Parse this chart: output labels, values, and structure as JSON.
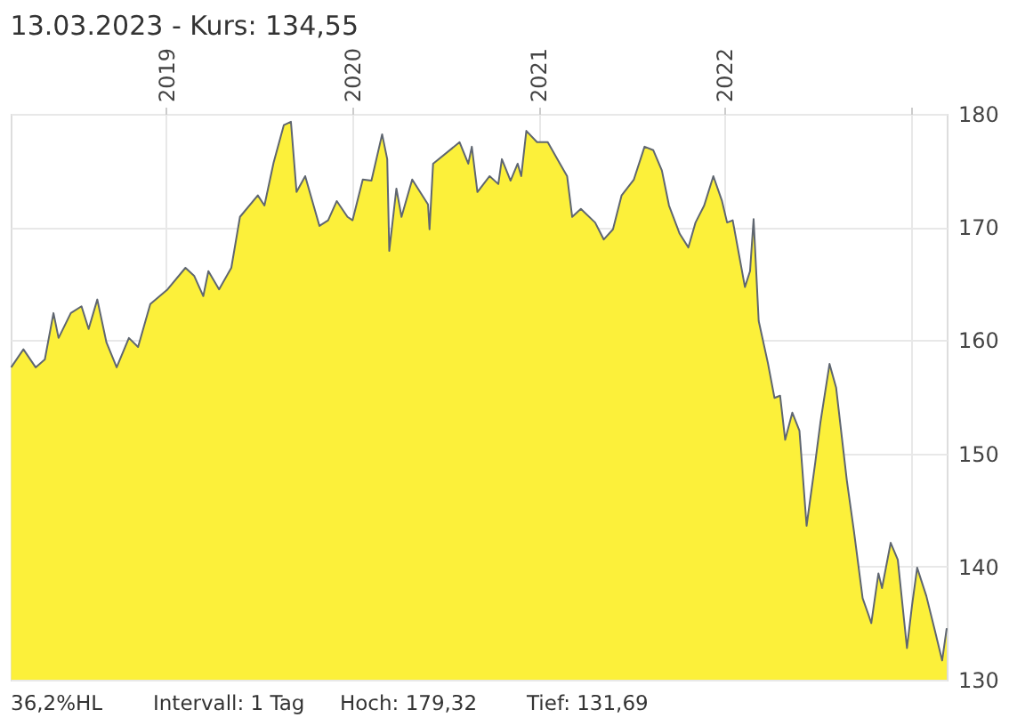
{
  "chart_data": {
    "type": "area",
    "title": "13.03.2023  - Kurs: 134,55",
    "x": [
      "2018-03-03",
      "2018-03-27",
      "2018-04-20",
      "2018-05-08",
      "2018-05-25",
      "2018-06-04",
      "2018-06-28",
      "2018-07-19",
      "2018-08-02",
      "2018-08-19",
      "2018-09-06",
      "2018-09-26",
      "2018-10-20",
      "2018-11-07",
      "2018-12-01",
      "2019-01-04",
      "2019-02-08",
      "2019-02-25",
      "2019-03-15",
      "2019-03-25",
      "2019-04-15",
      "2019-05-09",
      "2019-05-26",
      "2019-06-30",
      "2019-07-13",
      "2019-07-31",
      "2019-08-20",
      "2019-09-03",
      "2019-09-14",
      "2019-10-01",
      "2019-10-29",
      "2019-11-15",
      "2019-12-02",
      "2019-12-23",
      "2020-01-02",
      "2020-01-22",
      "2020-02-08",
      "2020-02-29",
      "2020-03-10",
      "2020-03-14",
      "2020-03-28",
      "2020-04-07",
      "2020-04-28",
      "2020-05-29",
      "2020-06-01",
      "2020-06-08",
      "2020-07-30",
      "2020-08-16",
      "2020-08-23",
      "2020-09-03",
      "2020-09-27",
      "2020-10-14",
      "2020-10-21",
      "2020-11-07",
      "2020-11-21",
      "2020-11-28",
      "2020-12-08",
      "2020-12-29",
      "2021-01-19",
      "2021-02-12",
      "2021-02-26",
      "2021-03-08",
      "2021-03-25",
      "2021-04-22",
      "2021-05-09",
      "2021-05-27",
      "2021-06-13",
      "2021-07-07",
      "2021-07-28",
      "2021-08-14",
      "2021-08-31",
      "2021-09-14",
      "2021-10-05",
      "2021-10-22",
      "2021-11-05",
      "2021-11-22",
      "2021-12-10",
      "2021-12-27",
      "2022-01-06",
      "2022-01-17",
      "2022-02-10",
      "2022-02-20",
      "2022-02-27",
      "2022-03-09",
      "2022-03-27",
      "2022-04-09",
      "2022-04-20",
      "2022-04-30",
      "2022-05-14",
      "2022-05-28",
      "2022-06-11",
      "2022-06-28",
      "2022-07-08",
      "2022-07-26",
      "2022-08-08",
      "2022-08-29",
      "2022-09-12",
      "2022-09-29",
      "2022-10-10",
      "2022-10-16",
      "2022-10-30",
      "2022-11-06",
      "2022-11-23",
      "2022-12-07",
      "2022-12-25",
      "2023-01-04",
      "2023-01-14",
      "2023-02-01",
      "2023-02-18",
      "2023-03-04",
      "2023-03-13"
    ],
    "series": [
      {
        "color": "#fcf03a",
        "values": [
          157.6,
          159.2,
          157.6,
          158.3,
          162.4,
          160.2,
          162.4,
          163.0,
          161.0,
          163.6,
          159.8,
          157.6,
          160.2,
          159.4,
          163.2,
          164.5,
          166.4,
          165.7,
          163.9,
          166.1,
          164.5,
          166.4,
          170.9,
          172.8,
          171.9,
          175.7,
          179.0,
          179.3,
          173.1,
          174.5,
          170.1,
          170.6,
          172.3,
          170.9,
          170.6,
          174.2,
          174.1,
          178.2,
          176.0,
          167.9,
          173.4,
          170.9,
          174.2,
          172.0,
          169.8,
          175.6,
          177.5,
          175.6,
          177.1,
          173.1,
          174.5,
          173.8,
          176.0,
          174.1,
          175.6,
          174.5,
          178.5,
          177.5,
          177.5,
          175.6,
          174.5,
          170.9,
          171.6,
          170.4,
          168.9,
          169.8,
          172.8,
          174.2,
          177.1,
          176.8,
          175.0,
          171.9,
          169.4,
          168.2,
          170.4,
          171.9,
          174.5,
          172.3,
          170.4,
          170.6,
          164.7,
          166.1,
          170.7,
          161.7,
          158.0,
          154.9,
          155.1,
          151.2,
          153.6,
          152.0,
          143.6,
          149.2,
          152.7,
          157.9,
          155.8,
          147.6,
          143.1,
          137.2,
          135.8,
          135.0,
          139.4,
          138.1,
          142.1,
          140.6,
          132.8,
          136.6,
          139.9,
          137.4,
          134.3,
          131.7,
          134.55
        ]
      }
    ],
    "xlim": [
      "2018-03-02",
      "2023-03-13"
    ],
    "xticks": [
      {
        "value": "2019-01-01",
        "label": "2019"
      },
      {
        "value": "2020-01-01",
        "label": "2020"
      },
      {
        "value": "2021-01-01",
        "label": "2021"
      },
      {
        "value": "2022-01-01",
        "label": "2022"
      },
      {
        "value": "2023-01-01",
        "label": null
      }
    ],
    "ylim": [
      130,
      180
    ],
    "yticks": [
      130,
      140,
      150,
      160,
      170,
      180
    ],
    "grid": true,
    "marker": "none",
    "annotations": [
      "36,2%HL",
      "Intervall: 1 Tag",
      "Hoch:  179,32",
      "Tief:  131,69"
    ]
  }
}
